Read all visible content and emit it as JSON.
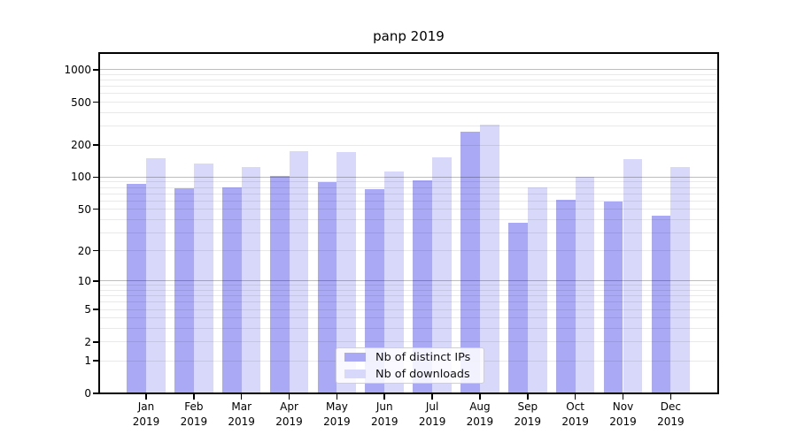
{
  "chart_data": {
    "type": "bar",
    "title": "panp 2019",
    "categories": [
      "Jan",
      "Feb",
      "Mar",
      "Apr",
      "May",
      "Jun",
      "Jul",
      "Aug",
      "Sep",
      "Oct",
      "Nov",
      "Dec"
    ],
    "x_tick_year": "2019",
    "series": [
      {
        "name": "Nb of distinct IPs",
        "color": "#a9a9f6",
        "values": [
          87,
          78,
          81,
          103,
          90,
          77,
          94,
          266,
          37,
          61,
          59,
          43
        ]
      },
      {
        "name": "Nb of downloads",
        "color": "#d8d8fa",
        "values": [
          150,
          134,
          125,
          175,
          171,
          113,
          153,
          310,
          81,
          100,
          148,
          124
        ]
      }
    ],
    "y_axis": {
      "scale": "log1p",
      "ticks": [
        0,
        1,
        2,
        5,
        10,
        20,
        50,
        100,
        200,
        500,
        1000
      ],
      "minor_gridlines": [
        1,
        2,
        3,
        4,
        5,
        6,
        7,
        8,
        9,
        20,
        30,
        40,
        50,
        60,
        70,
        80,
        90,
        200,
        300,
        400,
        500,
        600,
        700,
        800,
        900
      ],
      "major_gridlines": [
        10,
        100,
        1000
      ],
      "max": 1430
    },
    "legend": {
      "position": "lower center"
    },
    "grid": true
  }
}
